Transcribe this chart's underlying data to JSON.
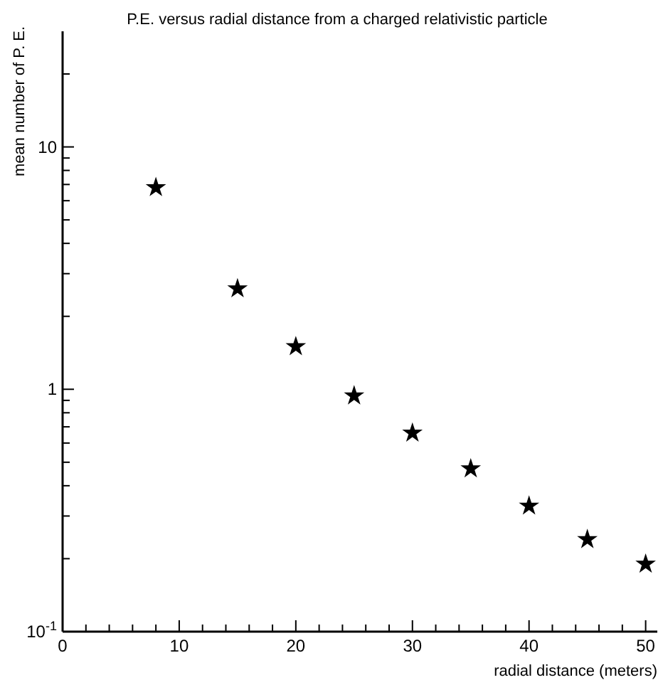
{
  "chart_data": {
    "type": "scatter",
    "title": "P.E. versus radial distance from a charged relativistic particle",
    "xlabel": "radial distance (meters)",
    "ylabel": "mean number of P. E.",
    "log": "y",
    "marker": "star",
    "grid": false,
    "x": [
      8,
      15,
      20,
      25,
      30,
      35,
      40,
      45,
      50
    ],
    "series": [
      {
        "color": "#000000",
        "values": [
          6.8,
          2.6,
          1.5,
          0.94,
          0.66,
          0.47,
          0.33,
          0.24,
          0.19
        ]
      }
    ],
    "xlim": [
      0,
      51
    ],
    "xticks": [
      0,
      {
        "value": 2,
        "label": null
      },
      {
        "value": 4,
        "label": null
      },
      {
        "value": 6,
        "label": null
      },
      {
        "value": 8,
        "label": null
      },
      10,
      {
        "value": 12,
        "label": null
      },
      {
        "value": 14,
        "label": null
      },
      {
        "value": 16,
        "label": null
      },
      {
        "value": 18,
        "label": null
      },
      20,
      {
        "value": 22,
        "label": null
      },
      {
        "value": 24,
        "label": null
      },
      {
        "value": 26,
        "label": null
      },
      {
        "value": 28,
        "label": null
      },
      30,
      {
        "value": 32,
        "label": null
      },
      {
        "value": 34,
        "label": null
      },
      {
        "value": 36,
        "label": null
      },
      {
        "value": 38,
        "label": null
      },
      40,
      {
        "value": 42,
        "label": null
      },
      {
        "value": 44,
        "label": null
      },
      {
        "value": 46,
        "label": null
      },
      {
        "value": 48,
        "label": null
      },
      50
    ],
    "ylim": [
      0.1,
      30
    ],
    "yticks": [
      {
        "value": 0.1,
        "label": "10$^{-1}$"
      },
      {
        "value": 0.2,
        "label": null
      },
      {
        "value": 0.3,
        "label": null
      },
      {
        "value": 0.4,
        "label": null
      },
      {
        "value": 0.5,
        "label": null
      },
      {
        "value": 0.6,
        "label": null
      },
      {
        "value": 0.7,
        "label": null
      },
      {
        "value": 0.8,
        "label": null
      },
      {
        "value": 0.9,
        "label": null
      },
      1,
      {
        "value": 2,
        "label": null
      },
      {
        "value": 3,
        "label": null
      },
      {
        "value": 4,
        "label": null
      },
      {
        "value": 5,
        "label": null
      },
      {
        "value": 6,
        "label": null
      },
      {
        "value": 7,
        "label": null
      },
      {
        "value": 8,
        "label": null
      },
      {
        "value": 9,
        "label": null
      },
      10,
      {
        "value": 20,
        "label": null
      }
    ]
  }
}
